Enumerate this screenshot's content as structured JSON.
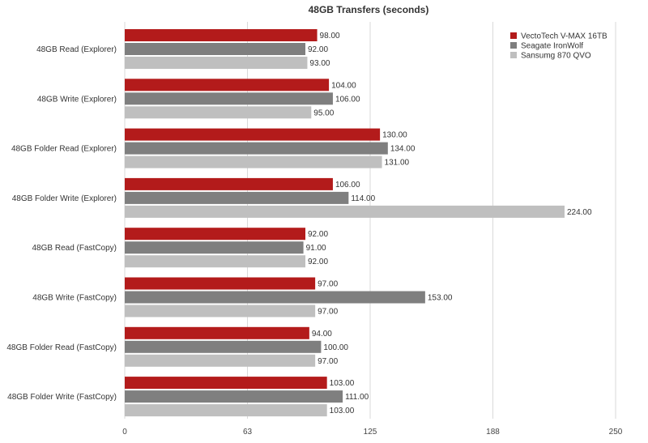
{
  "chart_data": {
    "type": "bar",
    "orientation": "horizontal",
    "title": "48GB Transfers (seconds)",
    "xlabel": "",
    "ylabel": "",
    "xlim": [
      0,
      250
    ],
    "ticks": [
      "0",
      "63",
      "125",
      "188",
      "250"
    ],
    "tick_values": [
      0,
      62.5,
      125,
      187.5,
      250
    ],
    "grid": true,
    "legend_position": "top-right",
    "categories": [
      "48GB Read (Explorer)",
      "48GB Write (Explorer)",
      "48GB Folder Read (Explorer)",
      "48GB Folder Write (Explorer)",
      "48GB Read (FastCopy)",
      "48GB Write (FastCopy)",
      "48GB Folder Read (FastCopy)",
      "48GB Folder Write (FastCopy)"
    ],
    "series": [
      {
        "name": "VectoTech V-MAX 16TB",
        "color": "#b31b1b",
        "values": [
          98,
          104,
          130,
          106,
          92,
          97,
          94,
          103
        ],
        "labels": [
          "98.00",
          "104.00",
          "130.00",
          "106.00",
          "92.00",
          "97.00",
          "94.00",
          "103.00"
        ]
      },
      {
        "name": "Seagate IronWolf",
        "color": "#7f7f7f",
        "values": [
          92,
          106,
          134,
          114,
          91,
          153,
          100,
          111
        ],
        "labels": [
          "92.00",
          "106.00",
          "134.00",
          "114.00",
          "91.00",
          "153.00",
          "100.00",
          "111.00"
        ]
      },
      {
        "name": "Sansumg 870 QVO",
        "color": "#bfbfbf",
        "values": [
          93,
          95,
          131,
          224,
          92,
          97,
          97,
          103
        ],
        "labels": [
          "93.00",
          "95.00",
          "131.00",
          "224.00",
          "92.00",
          "97.00",
          "97.00",
          "103.00"
        ]
      }
    ]
  }
}
